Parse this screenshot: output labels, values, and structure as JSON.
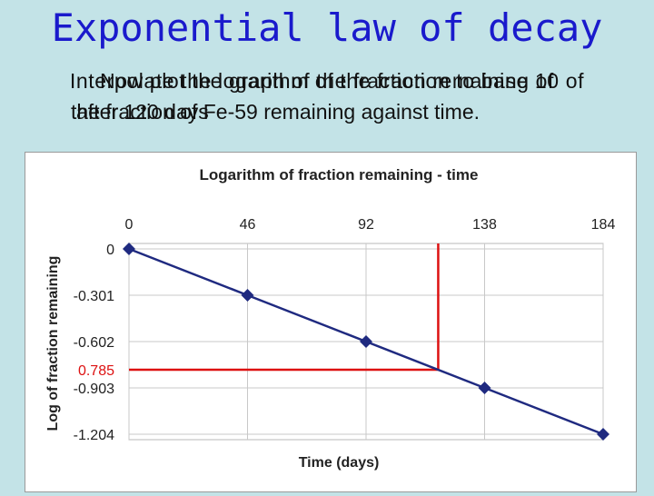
{
  "slide": {
    "title": "Exponential law of decay",
    "overlap_text_1": "Now plot the graph of the fraction remaining of",
    "overlap_text_2": "Interpolate the logarithm of the fraction to base 10 of",
    "overlap_text_3": "the fraction of Fe-59 remaining against time.",
    "overlap_text_4": "after 120 days"
  },
  "chart_data": {
    "type": "line",
    "title": "Logarithm of fraction remaining - time",
    "xlabel": "Time (days)",
    "ylabel": "Log of fraction remaining",
    "x_ticks": [
      "0",
      "46",
      "92",
      "138",
      "184"
    ],
    "y_ticks": [
      "0",
      "-0.301",
      "-0.602",
      "-0.903",
      "-1.204"
    ],
    "xlim": [
      0,
      184
    ],
    "ylim": [
      -1.204,
      0
    ],
    "grid": true,
    "series": [
      {
        "x": [
          0,
          46,
          92,
          138,
          184
        ],
        "y": [
          0,
          -0.301,
          -0.602,
          -0.903,
          -1.204
        ],
        "color": "#1f2a80"
      }
    ],
    "interpolation": {
      "x": 120,
      "y": -0.785,
      "label": "0.785",
      "color": "#dd1111"
    }
  }
}
